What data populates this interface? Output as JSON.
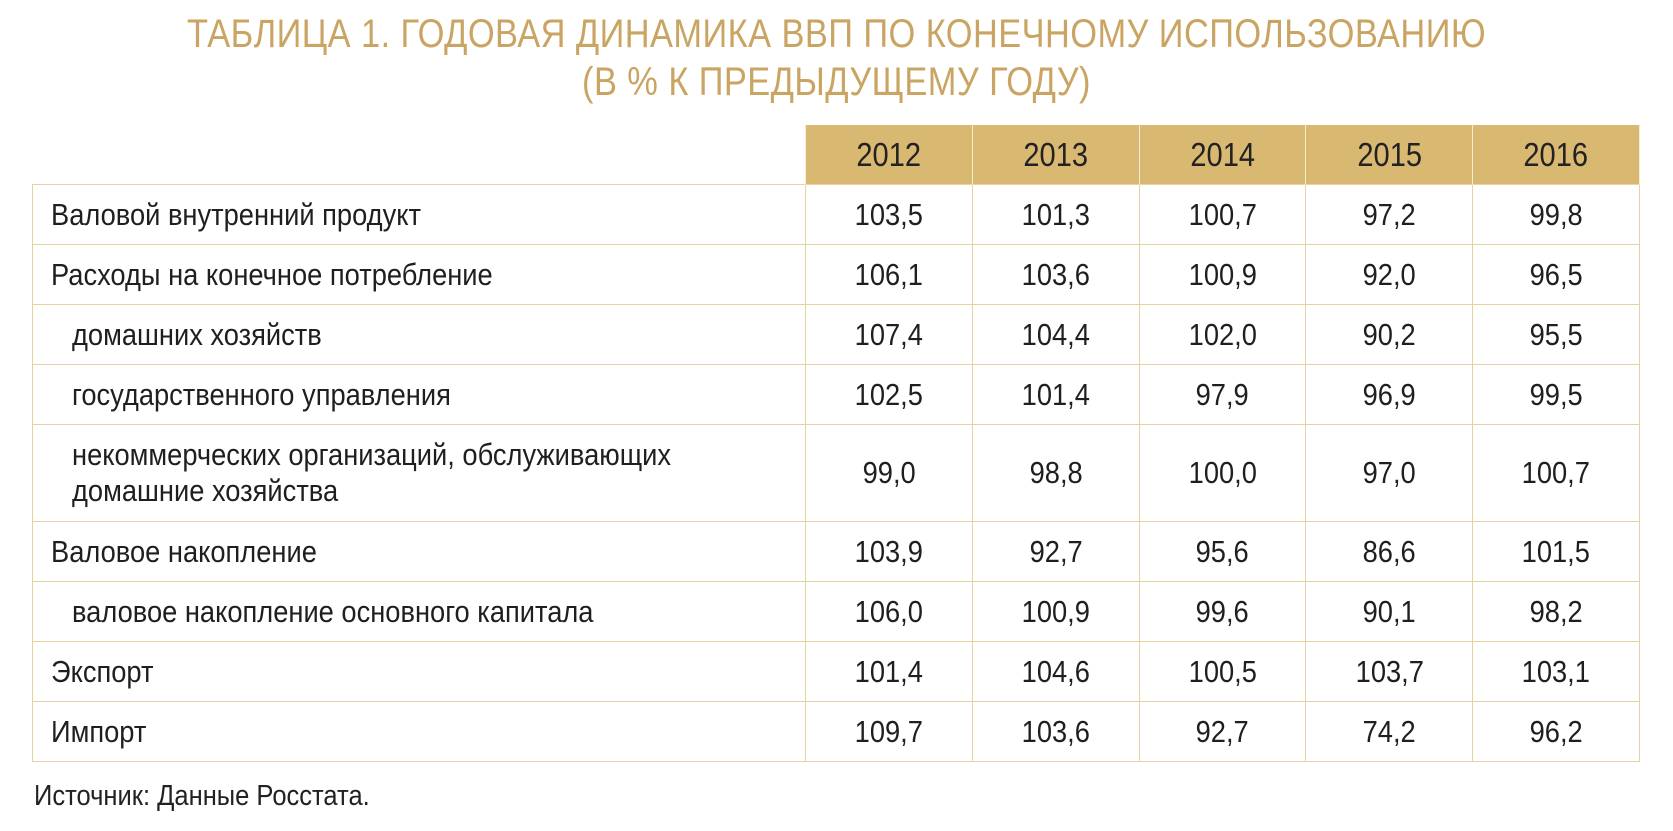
{
  "title": {
    "line1": "ТАБЛИЦА 1. ГОДОВАЯ ДИНАМИКА ВВП ПО КОНЕЧНОМУ ИСПОЛЬЗОВАНИЮ",
    "line2": "(В % К ПРЕДЫДУЩЕМУ ГОДУ)"
  },
  "colors": {
    "title": "#c9a463",
    "header_fill": "#d9b871",
    "grid": "#e7d2a4"
  },
  "table": {
    "years": [
      "2012",
      "2013",
      "2014",
      "2015",
      "2016"
    ],
    "rows": [
      {
        "label": "Валовой внутренний продукт",
        "values": [
          "103,5",
          "101,3",
          "100,7",
          "97,2",
          "99,8"
        ]
      },
      {
        "label": "Расходы на конечное потребление",
        "values": [
          "106,1",
          "103,6",
          "100,9",
          "92,0",
          "96,5"
        ]
      },
      {
        "label": "домашних хозяйств",
        "values": [
          "107,4",
          "104,4",
          "102,0",
          "90,2",
          "95,5"
        ]
      },
      {
        "label": "государственного управления",
        "values": [
          "102,5",
          "101,4",
          "97,9",
          "96,9",
          "99,5"
        ]
      },
      {
        "label_line1": "некоммерческих организаций, обслуживающих",
        "label_line2": "домашние хозяйства",
        "values": [
          "99,0",
          "98,8",
          "100,0",
          "97,0",
          "100,7"
        ]
      },
      {
        "label": "Валовое накопление",
        "values": [
          "103,9",
          "92,7",
          "95,6",
          "86,6",
          "101,5"
        ]
      },
      {
        "label": "валовое накопление основного капитала",
        "values": [
          "106,0",
          "100,9",
          "99,6",
          "90,1",
          "98,2"
        ]
      },
      {
        "label": "Экспорт",
        "values": [
          "101,4",
          "104,6",
          "100,5",
          "103,7",
          "103,1"
        ]
      },
      {
        "label": "Импорт",
        "values": [
          "109,7",
          "103,6",
          "92,7",
          "74,2",
          "96,2"
        ]
      }
    ]
  },
  "source": "Источник: Данные Росстата."
}
